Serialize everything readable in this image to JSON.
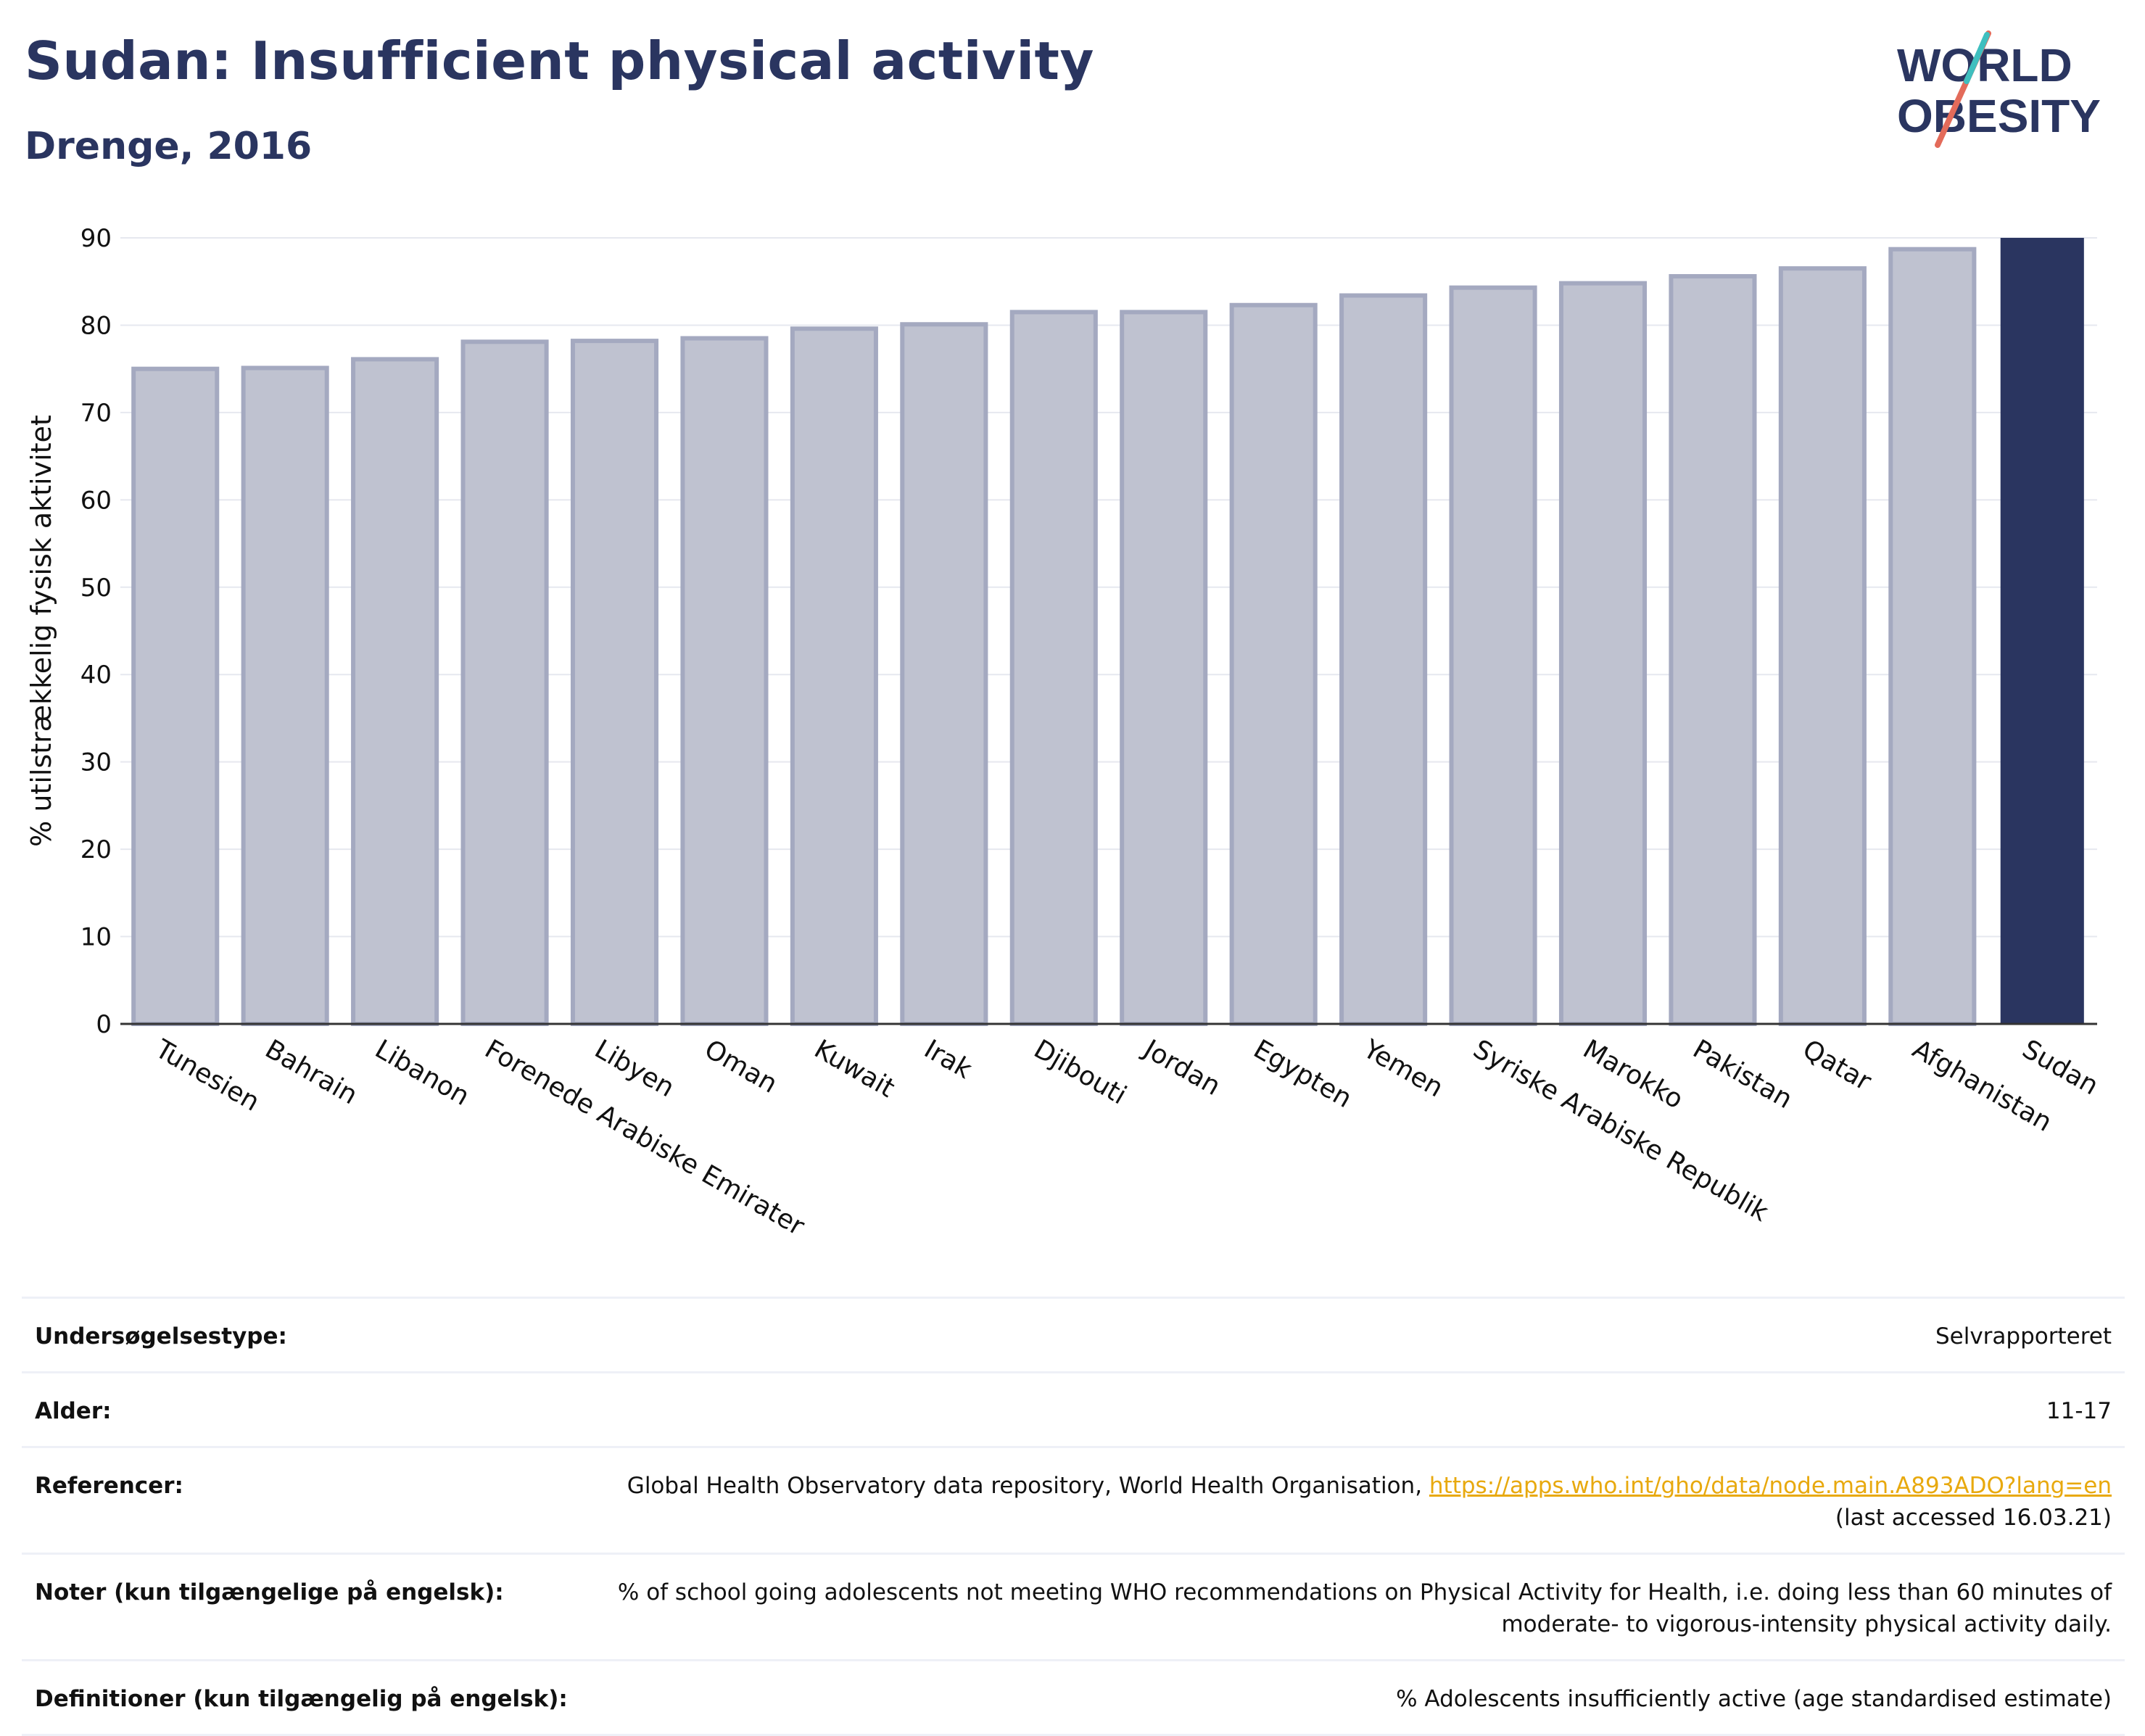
{
  "header": {
    "title": "Sudan: Insufficient physical activity",
    "subtitle": "Drenge, 2016"
  },
  "logo": {
    "line1": "WORLD",
    "line2": "OBESITY"
  },
  "chart_data": {
    "type": "bar",
    "ylabel": "% utilstrækkelig fysisk aktivitet",
    "ylim": [
      0,
      90
    ],
    "yticks": [
      0,
      10,
      20,
      30,
      40,
      50,
      60,
      70,
      80,
      90
    ],
    "grid": true,
    "categories": [
      "Tunesien",
      "Bahrain",
      "Libanon",
      "Forenede Arabiske Emirater",
      "Libyen",
      "Oman",
      "Kuwait",
      "Irak",
      "Djibouti",
      "Jordan",
      "Egypten",
      "Yemen",
      "Syriske Arabiske Republik",
      "Marokko",
      "Pakistan",
      "Qatar",
      "Afghanistan",
      "Sudan"
    ],
    "values": [
      75.0,
      75.1,
      76.1,
      78.1,
      78.2,
      78.5,
      79.6,
      80.1,
      81.5,
      81.5,
      82.3,
      83.4,
      84.3,
      84.8,
      85.6,
      86.5,
      88.7,
      90.0
    ],
    "highlight": "Sudan",
    "colors": {
      "bar": "#bfc2d0",
      "bar_border": "#a4a9c0",
      "highlight": "#2a3560"
    }
  },
  "info": [
    {
      "label": "Undersøgelsestype:",
      "value": "Selvrapporteret"
    },
    {
      "label": "Alder:",
      "value": "11-17"
    },
    {
      "label": "Referencer:",
      "value": "Global Health Observatory data repository, World Health Organisation,",
      "link": "https://apps.who.int/gho/data/node.main.A893ADO?lang=en",
      "value2": "(last accessed 16.03.21)"
    },
    {
      "label": "Noter (kun tilgængelige på engelsk):",
      "value": "% of school going adolescents not meeting WHO recommendations on Physical Activity for Health, i.e. doing less than 60 minutes of moderate- to vigorous-intensity physical activity daily."
    },
    {
      "label": "Definitioner (kun tilgængelig på engelsk):",
      "value": "% Adolescents insufficiently active (age standardised estimate)"
    }
  ]
}
